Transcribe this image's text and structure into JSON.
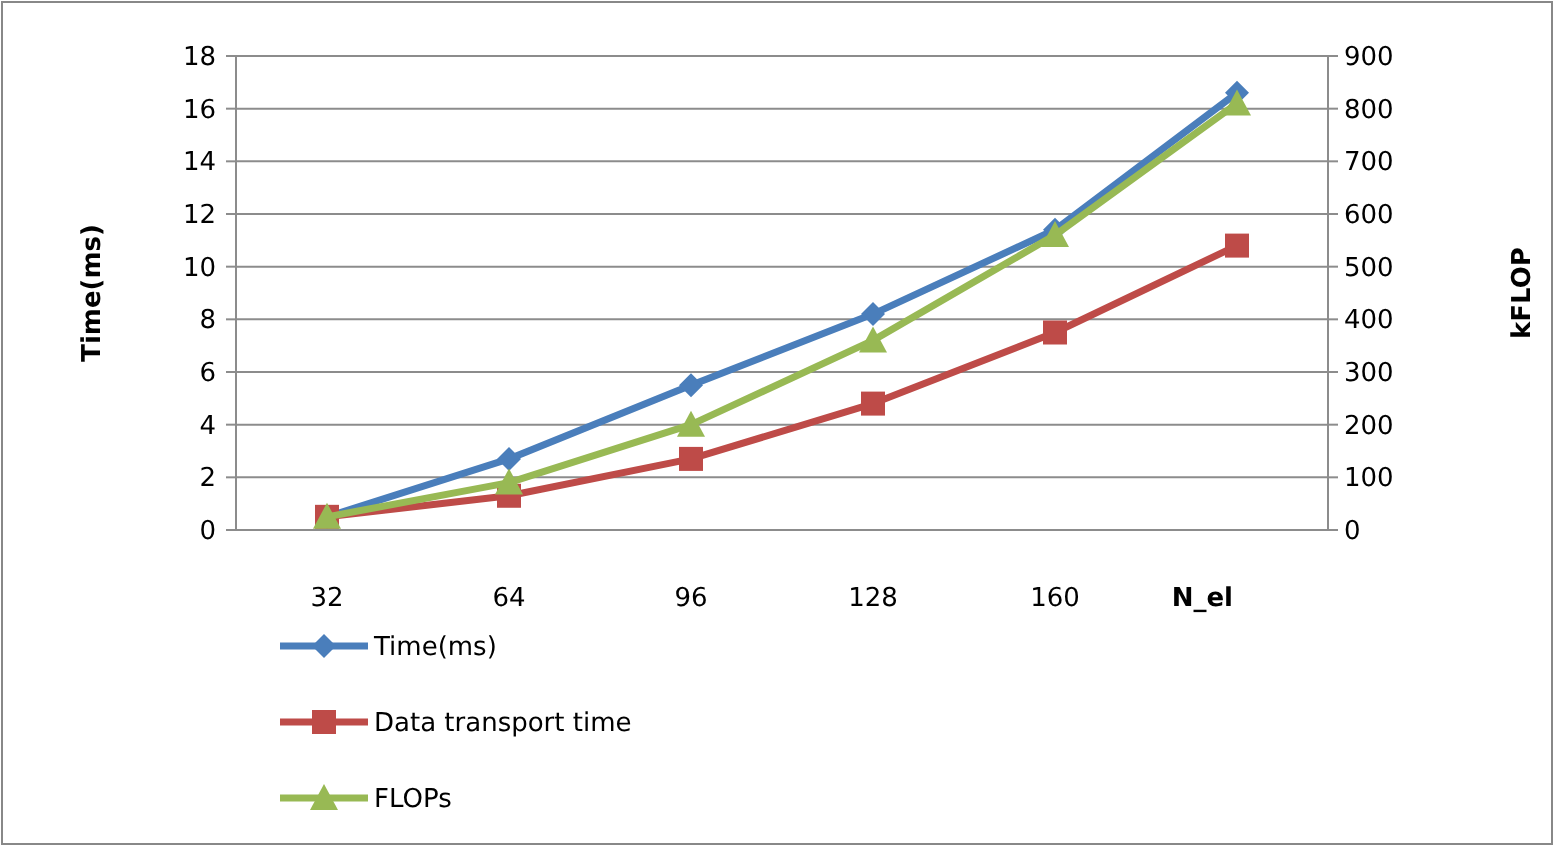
{
  "chart_data": {
    "type": "line",
    "xlabel": "N_el",
    "ylabel": "Time(ms)",
    "y2label": "kFLOP",
    "categories": [
      "32",
      "64",
      "96",
      "128",
      "160",
      null
    ],
    "series": [
      {
        "name": "Time(ms)",
        "color": "#4a7ebb",
        "values": [
          0.5,
          2.7,
          5.5,
          8.2,
          11.4,
          16.6
        ],
        "marker": "diamond"
      },
      {
        "name": "Data transport time",
        "color": "#be4b48",
        "values": [
          0.5,
          1.3,
          2.7,
          4.8,
          7.5,
          10.8
        ],
        "marker": "square"
      },
      {
        "name": "FLOPs",
        "color": "#98b954",
        "values": [
          25,
          90,
          200,
          360,
          560,
          810
        ],
        "marker": "triangle",
        "axis": "y2"
      }
    ],
    "ylim": [
      0,
      18
    ],
    "yticks": [
      0,
      2,
      4,
      6,
      8,
      10,
      12,
      14,
      16,
      18
    ],
    "y2lim": [
      0,
      900
    ],
    "y2ticks": [
      0,
      100,
      200,
      300,
      400,
      500,
      600,
      700,
      800,
      900
    ],
    "grid": "y",
    "legend": "bottom left",
    "line_style": "solid"
  }
}
